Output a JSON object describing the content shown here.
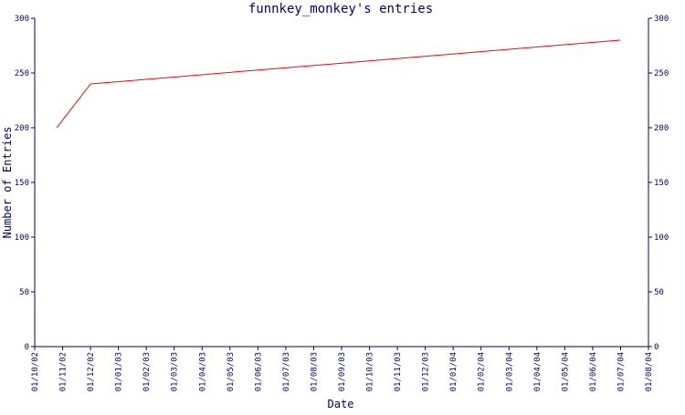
{
  "chart_data": {
    "type": "line",
    "title": "funnkey_monkey's entries",
    "xlabel": "Date",
    "ylabel": "Number of Entries",
    "ylim": [
      0,
      300
    ],
    "yticks": [
      0,
      50,
      100,
      150,
      200,
      250,
      300
    ],
    "xticks": [
      "01/10/02",
      "01/11/02",
      "01/12/02",
      "01/01/03",
      "01/02/03",
      "01/03/03",
      "01/04/03",
      "01/05/03",
      "01/06/03",
      "01/07/03",
      "01/08/03",
      "01/09/03",
      "01/10/03",
      "01/11/03",
      "01/12/03",
      "01/01/04",
      "01/02/04",
      "01/03/04",
      "01/04/04",
      "01/05/04",
      "01/06/04",
      "01/07/04",
      "01/08/04"
    ],
    "grid": false,
    "legend": "none",
    "series": [
      {
        "color": "#ff0000",
        "x": [
          "2002-10-25",
          "2002-12-01",
          "2004-07-01"
        ],
        "y": [
          200,
          240,
          280
        ]
      }
    ],
    "axis_color": "#000080",
    "line_color": "#ff0000"
  }
}
